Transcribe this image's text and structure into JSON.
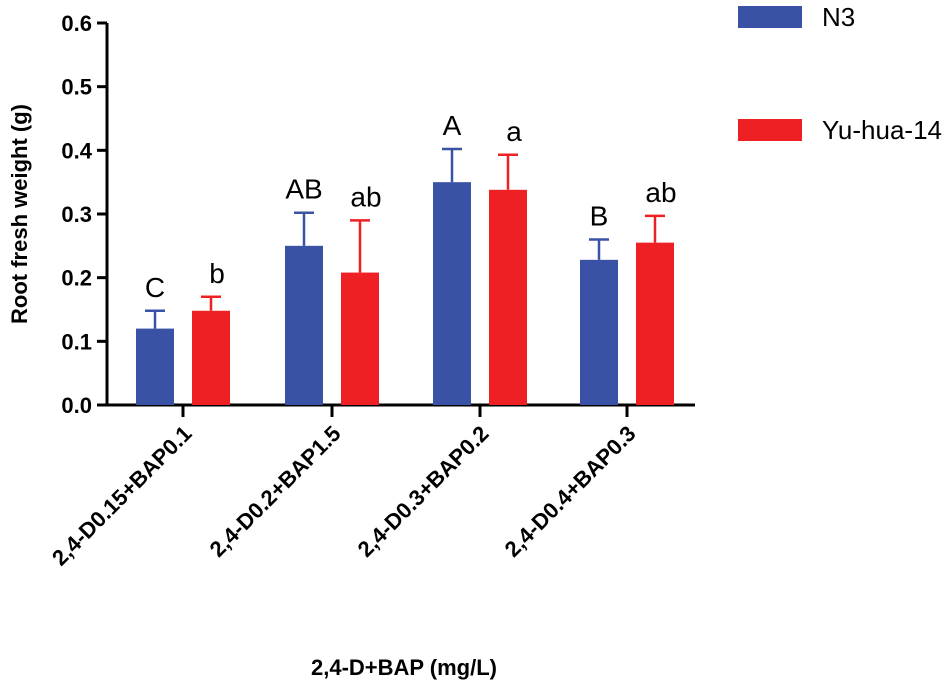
{
  "chart_data": {
    "type": "bar",
    "title": "",
    "xlabel": "2,4-D+BAP (mg/L)",
    "ylabel": "Root fresh weight (g)",
    "ylim": [
      0,
      0.6
    ],
    "yticks": [
      "0.0",
      "0.1",
      "0.2",
      "0.3",
      "0.4",
      "0.5",
      "0.6"
    ],
    "ytick_values": [
      0,
      0.1,
      0.2,
      0.3,
      0.4,
      0.5,
      0.6
    ],
    "categories": [
      "2,4-D0.15+BAP0.1",
      "2,4-D0.2+BAP1.5",
      "2,4-D0.3+BAP0.2",
      "2,4-D0.4+BAP0.3"
    ],
    "series": [
      {
        "name": "N3",
        "color": "#3a52a5",
        "values": [
          0.12,
          0.25,
          0.35,
          0.228
        ],
        "errors": [
          0.028,
          0.052,
          0.052,
          0.032
        ],
        "labels": [
          "C",
          "AB",
          "A",
          "B"
        ]
      },
      {
        "name": "Yu-hua-14",
        "color": "#ee2024",
        "values": [
          0.148,
          0.208,
          0.338,
          0.255
        ],
        "errors": [
          0.022,
          0.082,
          0.055,
          0.042
        ],
        "labels": [
          "b",
          "ab",
          "a",
          "ab"
        ]
      }
    ],
    "legend": {
      "position": "top-right",
      "entries": [
        "N3",
        "Yu-hua-14"
      ]
    }
  }
}
